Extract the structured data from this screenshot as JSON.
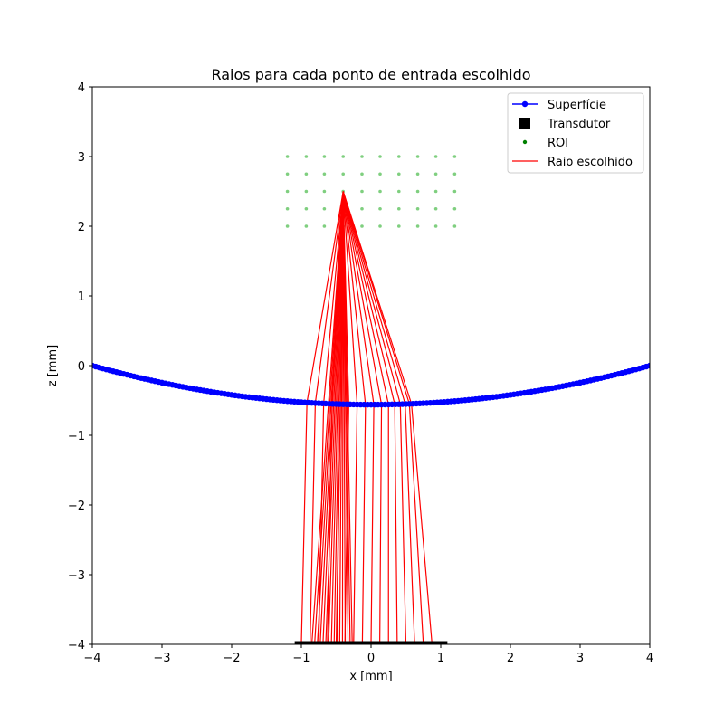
{
  "chart_data": {
    "type": "line",
    "title": "Raios para cada ponto de entrada escolhido",
    "xlabel": "x [mm]",
    "ylabel": "z [mm]",
    "xlim": [
      -4,
      4
    ],
    "ylim": [
      4,
      -4
    ],
    "xticks": [
      -4,
      -3,
      -2,
      -1,
      0,
      1,
      2,
      3,
      4
    ],
    "yticks": [
      -4,
      -3,
      -2,
      -1,
      0,
      1,
      2,
      3,
      4
    ],
    "xtick_labels": [
      "−4",
      "−3",
      "−2",
      "−1",
      "0",
      "1",
      "2",
      "3",
      "4"
    ],
    "ytick_labels": [
      "−4",
      "−3",
      "−2",
      "−1",
      "0",
      "1",
      "2",
      "3",
      "4"
    ],
    "grid": false,
    "legend_position": "top-right",
    "legend": [
      {
        "label": "Superfície",
        "marker": "circle-line",
        "color": "#0000ff"
      },
      {
        "label": "Transdutor",
        "marker": "square",
        "color": "#000000"
      },
      {
        "label": "ROI",
        "marker": "dot",
        "color": "#008000"
      },
      {
        "label": "Raio escolhido",
        "marker": "line",
        "color": "#ff0000"
      }
    ],
    "series": [
      {
        "name": "Superfície",
        "kind": "surface-curve",
        "color": "#0000ff",
        "x_range": [
          -4,
          4
        ],
        "vertex": [
          0,
          -0.56
        ],
        "edge_z": 0.0
      },
      {
        "name": "Transdutor",
        "kind": "element-array",
        "color": "#000000",
        "x_range": [
          -1.05,
          1.05
        ],
        "z": -4.0
      },
      {
        "name": "ROI",
        "kind": "point-grid",
        "color": "#7fcf7f",
        "x": [
          -1.2,
          -0.93,
          -0.67,
          -0.4,
          -0.13,
          0.13,
          0.4,
          0.67,
          0.93,
          1.2
        ],
        "z": [
          2.0,
          2.25,
          2.5,
          2.75,
          3.0
        ]
      },
      {
        "name": "Raio escolhido",
        "kind": "rays",
        "color": "#ff0000",
        "rays": [
          {
            "transducer_x": -1.0,
            "entry_x": -0.92,
            "focus": [
              -0.4,
              2.5
            ],
            "exit_x": -0.85
          },
          {
            "transducer_x": -0.875,
            "entry_x": -0.8,
            "focus": [
              -0.4,
              2.5
            ],
            "exit_x": -0.81
          },
          {
            "transducer_x": -0.75,
            "entry_x": -0.68,
            "focus": [
              -0.4,
              2.5
            ],
            "exit_x": -0.77
          },
          {
            "transducer_x": -0.625,
            "entry_x": -0.56,
            "focus": [
              -0.4,
              2.5
            ],
            "exit_x": -0.73
          },
          {
            "transducer_x": -0.5,
            "entry_x": -0.44,
            "focus": [
              -0.4,
              2.5
            ],
            "exit_x": -0.69
          },
          {
            "transducer_x": -0.375,
            "entry_x": -0.32,
            "focus": [
              -0.4,
              2.5
            ],
            "exit_x": -0.65
          },
          {
            "transducer_x": -0.25,
            "entry_x": -0.2,
            "focus": [
              -0.4,
              2.5
            ],
            "exit_x": -0.61
          },
          {
            "transducer_x": -0.125,
            "entry_x": -0.08,
            "focus": [
              -0.4,
              2.5
            ],
            "exit_x": -0.57
          },
          {
            "transducer_x": 0.0,
            "entry_x": 0.04,
            "focus": [
              -0.4,
              2.5
            ],
            "exit_x": -0.53
          },
          {
            "transducer_x": 0.125,
            "entry_x": 0.15,
            "focus": [
              -0.4,
              2.5
            ],
            "exit_x": -0.49
          },
          {
            "transducer_x": 0.25,
            "entry_x": 0.25,
            "focus": [
              -0.4,
              2.5
            ],
            "exit_x": -0.45
          },
          {
            "transducer_x": 0.375,
            "entry_x": 0.34,
            "focus": [
              -0.4,
              2.5
            ],
            "exit_x": -0.41
          },
          {
            "transducer_x": 0.5,
            "entry_x": 0.42,
            "focus": [
              -0.4,
              2.5
            ],
            "exit_x": -0.37
          },
          {
            "transducer_x": 0.625,
            "entry_x": 0.49,
            "focus": [
              -0.4,
              2.5
            ],
            "exit_x": -0.33
          },
          {
            "transducer_x": 0.75,
            "entry_x": 0.55,
            "focus": [
              -0.4,
              2.5
            ],
            "exit_x": -0.3
          },
          {
            "transducer_x": 0.875,
            "entry_x": 0.58,
            "focus": [
              -0.4,
              2.5
            ],
            "exit_x": -0.27
          }
        ]
      }
    ]
  }
}
